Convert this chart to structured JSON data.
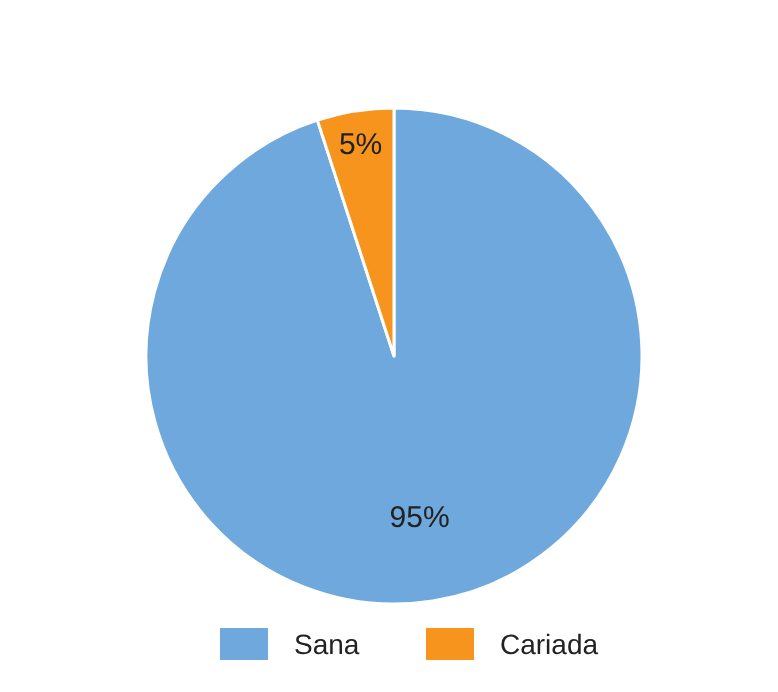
{
  "chart_data": {
    "type": "pie",
    "categories": [
      "Sana",
      "Cariada"
    ],
    "values": [
      95,
      5
    ],
    "colors": [
      "#6fa8dc",
      "#f7941d"
    ],
    "value_labels": [
      "95%",
      "5%"
    ],
    "legend": "bottom"
  }
}
